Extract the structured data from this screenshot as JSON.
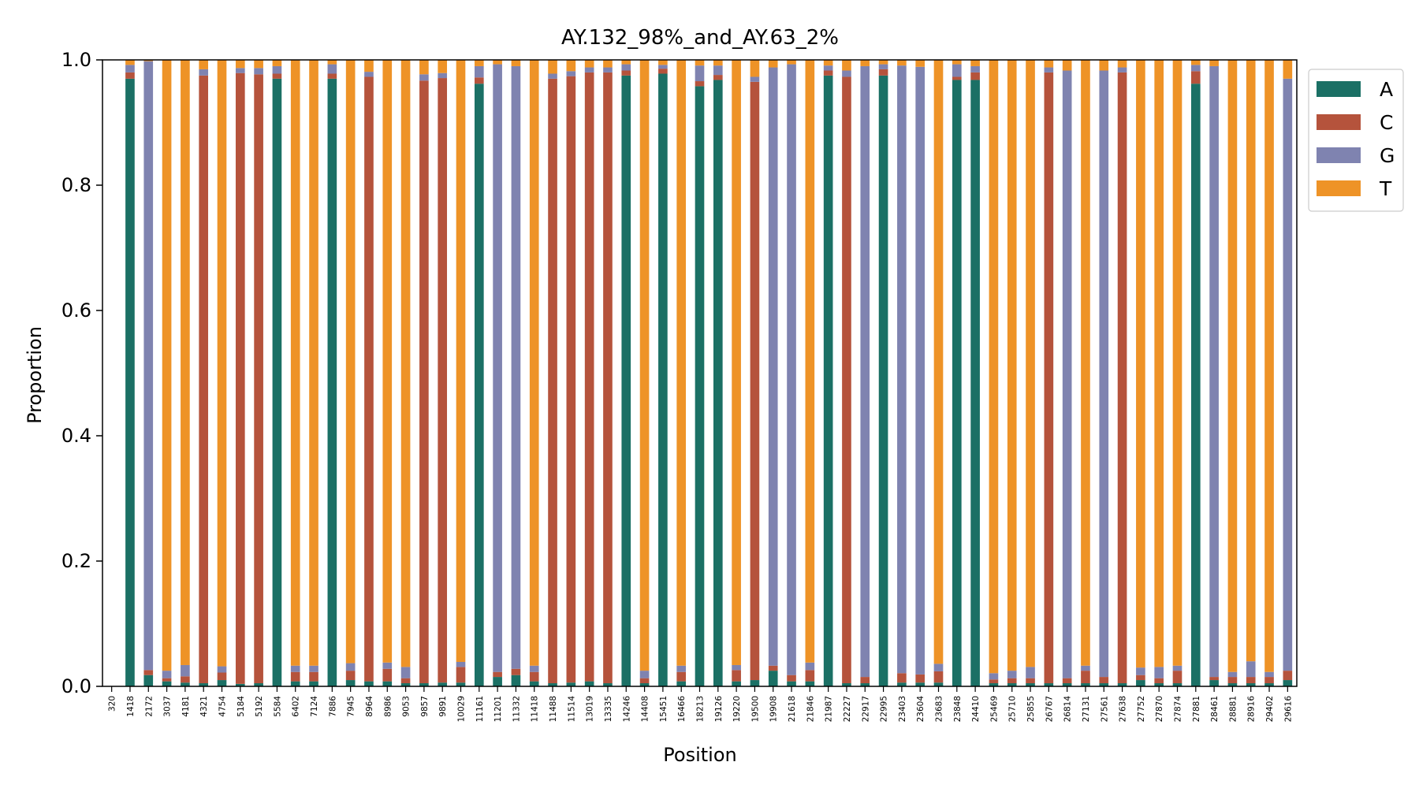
{
  "chart_data": {
    "type": "bar",
    "stacked": true,
    "title": "AY.132_98%_and_AY.63_2%",
    "xlabel": "Position",
    "ylabel": "Proportion",
    "ylim": [
      0,
      1
    ],
    "yticks": [
      "0.0",
      "0.2",
      "0.4",
      "0.6",
      "0.8",
      "1.0"
    ],
    "grid": false,
    "legend_position": "top-right, outside plot",
    "categories": [
      "320",
      "1418",
      "2172",
      "3037",
      "4181",
      "4321",
      "4754",
      "5184",
      "5192",
      "5584",
      "6402",
      "7124",
      "7886",
      "7945",
      "8964",
      "8986",
      "9053",
      "9857",
      "9891",
      "10029",
      "11161",
      "11201",
      "11332",
      "11418",
      "11488",
      "11514",
      "13019",
      "13335",
      "14246",
      "14408",
      "15451",
      "16466",
      "18213",
      "19126",
      "19220",
      "19500",
      "19908",
      "21618",
      "21846",
      "21987",
      "22227",
      "22917",
      "22995",
      "23403",
      "23604",
      "23683",
      "23848",
      "24410",
      "25469",
      "25710",
      "25855",
      "26767",
      "26814",
      "27131",
      "27561",
      "27638",
      "27752",
      "27870",
      "27874",
      "27881",
      "28461",
      "28881",
      "28916",
      "29402",
      "29616"
    ],
    "series": [
      {
        "name": "A",
        "color": "#1b7065",
        "values": [
          0,
          0.97,
          0.018,
          0.008,
          0.006,
          0.005,
          0.01,
          0.004,
          0.005,
          0.97,
          0.008,
          0.008,
          0.97,
          0.01,
          0.008,
          0.008,
          0.005,
          0.005,
          0.006,
          0.006,
          0.962,
          0.015,
          0.018,
          0.008,
          0.005,
          0.006,
          0.008,
          0.005,
          0.975,
          0.005,
          0.978,
          0.008,
          0.958,
          0.968,
          0.008,
          0.01,
          0.025,
          0.008,
          0.008,
          0.975,
          0.005,
          0.005,
          0.975,
          0.006,
          0.006,
          0.006,
          0.968,
          0.968,
          0.005,
          0.005,
          0.005,
          0.005,
          0.005,
          0.005,
          0.005,
          0.005,
          0.01,
          0.005,
          0.005,
          0.962,
          0.01,
          0.005,
          0.005,
          0.005,
          0.01
        ]
      },
      {
        "name": "C",
        "color": "#b5533c",
        "values": [
          0,
          0.01,
          0.008,
          0.005,
          0.01,
          0.97,
          0.012,
          0.975,
          0.972,
          0.008,
          0.015,
          0.015,
          0.008,
          0.015,
          0.965,
          0.02,
          0.008,
          0.962,
          0.965,
          0.025,
          0.01,
          0.008,
          0.01,
          0.015,
          0.965,
          0.968,
          0.972,
          0.975,
          0.008,
          0.008,
          0.008,
          0.015,
          0.008,
          0.008,
          0.018,
          0.955,
          0.008,
          0.01,
          0.018,
          0.008,
          0.968,
          0.01,
          0.01,
          0.015,
          0.013,
          0.018,
          0.005,
          0.012,
          0.006,
          0.008,
          0.008,
          0.975,
          0.008,
          0.02,
          0.01,
          0.975,
          0.008,
          0.008,
          0.02,
          0.02,
          0.005,
          0.01,
          0.01,
          0.01,
          0.015
        ]
      },
      {
        "name": "G",
        "color": "#7f83b0",
        "values": [
          0,
          0.012,
          0.972,
          0.012,
          0.018,
          0.01,
          0.01,
          0.008,
          0.01,
          0.012,
          0.01,
          0.01,
          0.015,
          0.012,
          0.008,
          0.01,
          0.018,
          0.01,
          0.008,
          0.008,
          0.018,
          0.97,
          0.962,
          0.01,
          0.008,
          0.008,
          0.008,
          0.008,
          0.01,
          0.012,
          0.006,
          0.01,
          0.025,
          0.015,
          0.008,
          0.008,
          0.955,
          0.975,
          0.012,
          0.008,
          0.01,
          0.975,
          0.008,
          0.97,
          0.97,
          0.012,
          0.02,
          0.01,
          0.01,
          0.012,
          0.018,
          0.008,
          0.97,
          0.008,
          0.968,
          0.008,
          0.012,
          0.018,
          0.008,
          0.01,
          0.975,
          0.008,
          0.025,
          0.008,
          0.945
        ]
      },
      {
        "name": "T",
        "color": "#ee9327",
        "values": [
          0,
          0.008,
          0.002,
          0.975,
          0.966,
          0.015,
          0.968,
          0.013,
          0.013,
          0.01,
          0.967,
          0.967,
          0.007,
          0.963,
          0.019,
          0.962,
          0.969,
          0.023,
          0.021,
          0.961,
          0.01,
          0.007,
          0.01,
          0.967,
          0.022,
          0.018,
          0.012,
          0.012,
          0.007,
          0.975,
          0.008,
          0.967,
          0.009,
          0.009,
          0.966,
          0.027,
          0.012,
          0.007,
          0.962,
          0.009,
          0.017,
          0.01,
          0.007,
          0.009,
          0.011,
          0.964,
          0.007,
          0.01,
          0.979,
          0.975,
          0.969,
          0.012,
          0.017,
          0.967,
          0.017,
          0.012,
          0.97,
          0.969,
          0.967,
          0.008,
          0.01,
          0.977,
          0.96,
          0.977,
          0.03
        ]
      }
    ]
  }
}
